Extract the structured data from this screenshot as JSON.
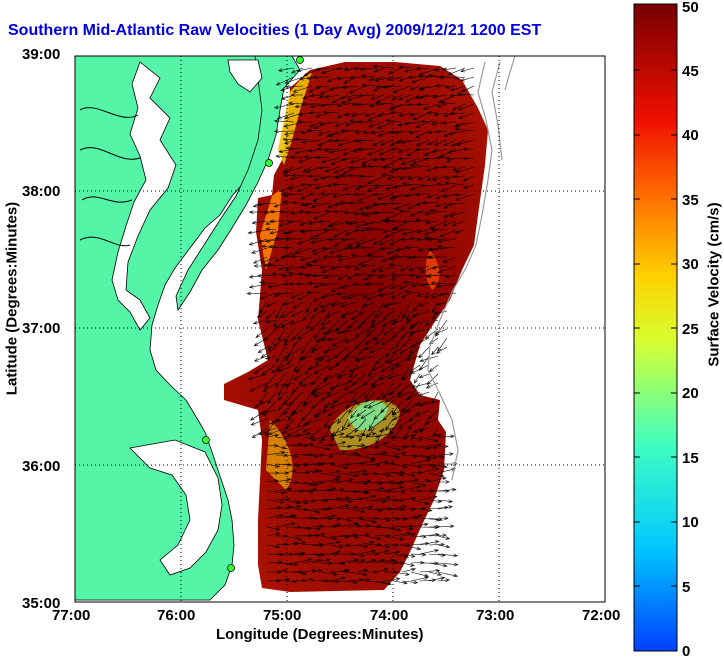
{
  "title": "Southern Mid-Atlantic Raw Velocities (1 Day Avg) 2009/12/21 1200 EST",
  "xlabel": "Longitude (Degrees:Minutes)",
  "ylabel": "Latitude (Degrees:Minutes)",
  "colorbar": {
    "label": "Surface Velocity (cm/s)",
    "min": 0,
    "max": 50,
    "ticks": [
      "0",
      "5",
      "10",
      "15",
      "20",
      "25",
      "30",
      "35",
      "40",
      "45",
      "50"
    ]
  },
  "lon_ticks": [
    "77:00",
    "76:00",
    "75:00",
    "74:00",
    "73:00",
    "72:00"
  ],
  "lat_ticks": [
    "35:00",
    "36:00",
    "37:00",
    "38:00",
    "39:00"
  ],
  "colors": {
    "land": "#55f5a8",
    "water": "#ffffff",
    "title": "#0000e0",
    "high": "#7a0000"
  }
}
